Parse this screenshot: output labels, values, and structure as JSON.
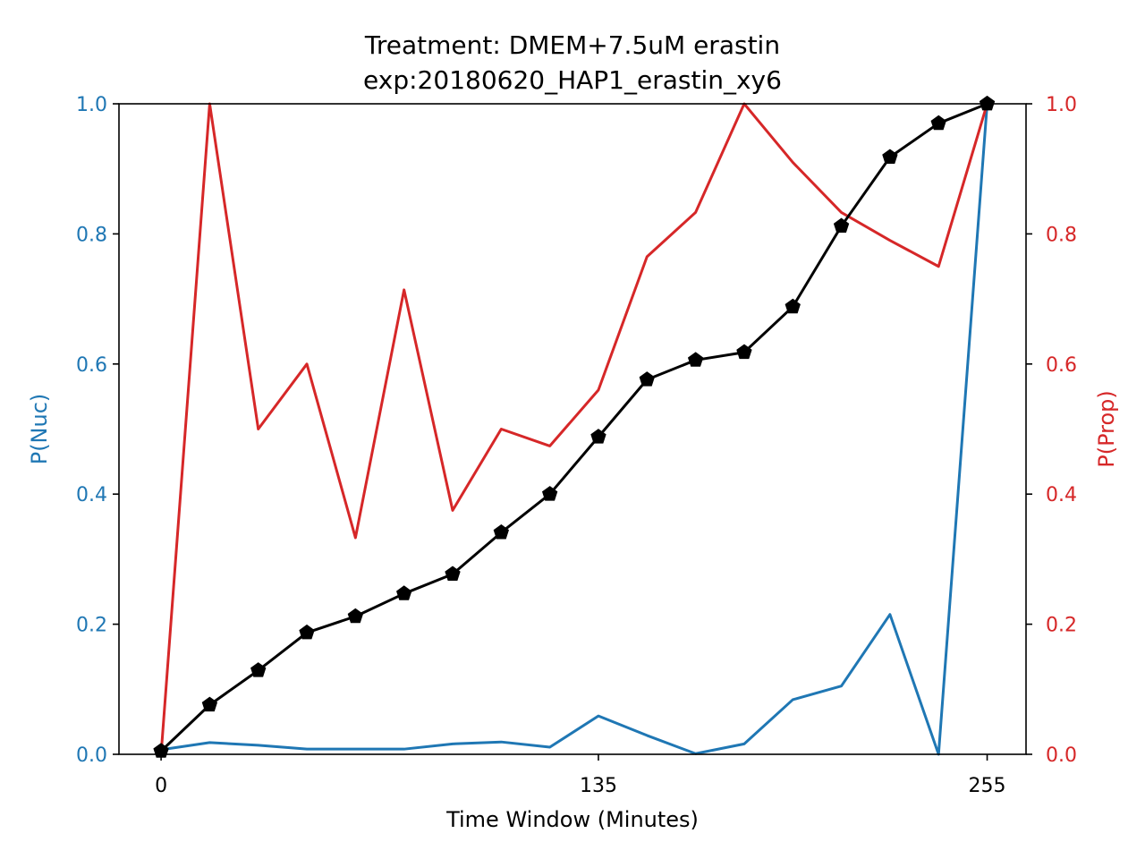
{
  "chart_data": {
    "type": "line",
    "title_line1": "Treatment: DMEM+7.5uM erastin",
    "title_line2": "exp:20180620_HAP1_erastin_xy6",
    "xlabel": "Time Window (Minutes)",
    "ylabel_left": "P(Nuc)",
    "ylabel_right": "P(Prop)",
    "xlim": [
      -13,
      267
    ],
    "ylim_left": [
      0,
      1
    ],
    "ylim_right": [
      0,
      1
    ],
    "x_ticks": [
      0,
      135,
      255
    ],
    "x_tick_labels": [
      "0",
      "135",
      "255"
    ],
    "y_ticks_left": [
      "0.0",
      "0.2",
      "0.4",
      "0.6",
      "0.8",
      "1.0"
    ],
    "y_ticks_right": [
      "0.0",
      "0.2",
      "0.4",
      "0.6",
      "0.8",
      "1.0"
    ],
    "grid": false,
    "x": [
      0,
      15,
      30,
      45,
      60,
      75,
      90,
      105,
      120,
      135,
      150,
      165,
      180,
      195,
      210,
      225,
      240,
      255
    ],
    "series": [
      {
        "axis": "left",
        "color": "#1f77b4",
        "marker": "none",
        "values": [
          0.007,
          0.018,
          0.014,
          0.008,
          0.008,
          0.008,
          0.016,
          0.019,
          0.011,
          0.059,
          0.029,
          0.001,
          0.016,
          0.084,
          0.105,
          0.215,
          0.0,
          1.0
        ]
      },
      {
        "axis": "right",
        "color": "#d62728",
        "marker": "none",
        "values": [
          0.0,
          1.0,
          0.5,
          0.6,
          0.333,
          0.714,
          0.375,
          0.5,
          0.474,
          0.56,
          0.765,
          0.833,
          1.0,
          0.91,
          0.833,
          0.79,
          0.75,
          1.0
        ]
      },
      {
        "axis": "left",
        "color": "#000000",
        "marker": "pentagon",
        "values": [
          0.005,
          0.076,
          0.129,
          0.187,
          0.212,
          0.247,
          0.277,
          0.341,
          0.4,
          0.488,
          0.576,
          0.606,
          0.618,
          0.688,
          0.812,
          0.918,
          0.97,
          1.0
        ]
      }
    ]
  }
}
